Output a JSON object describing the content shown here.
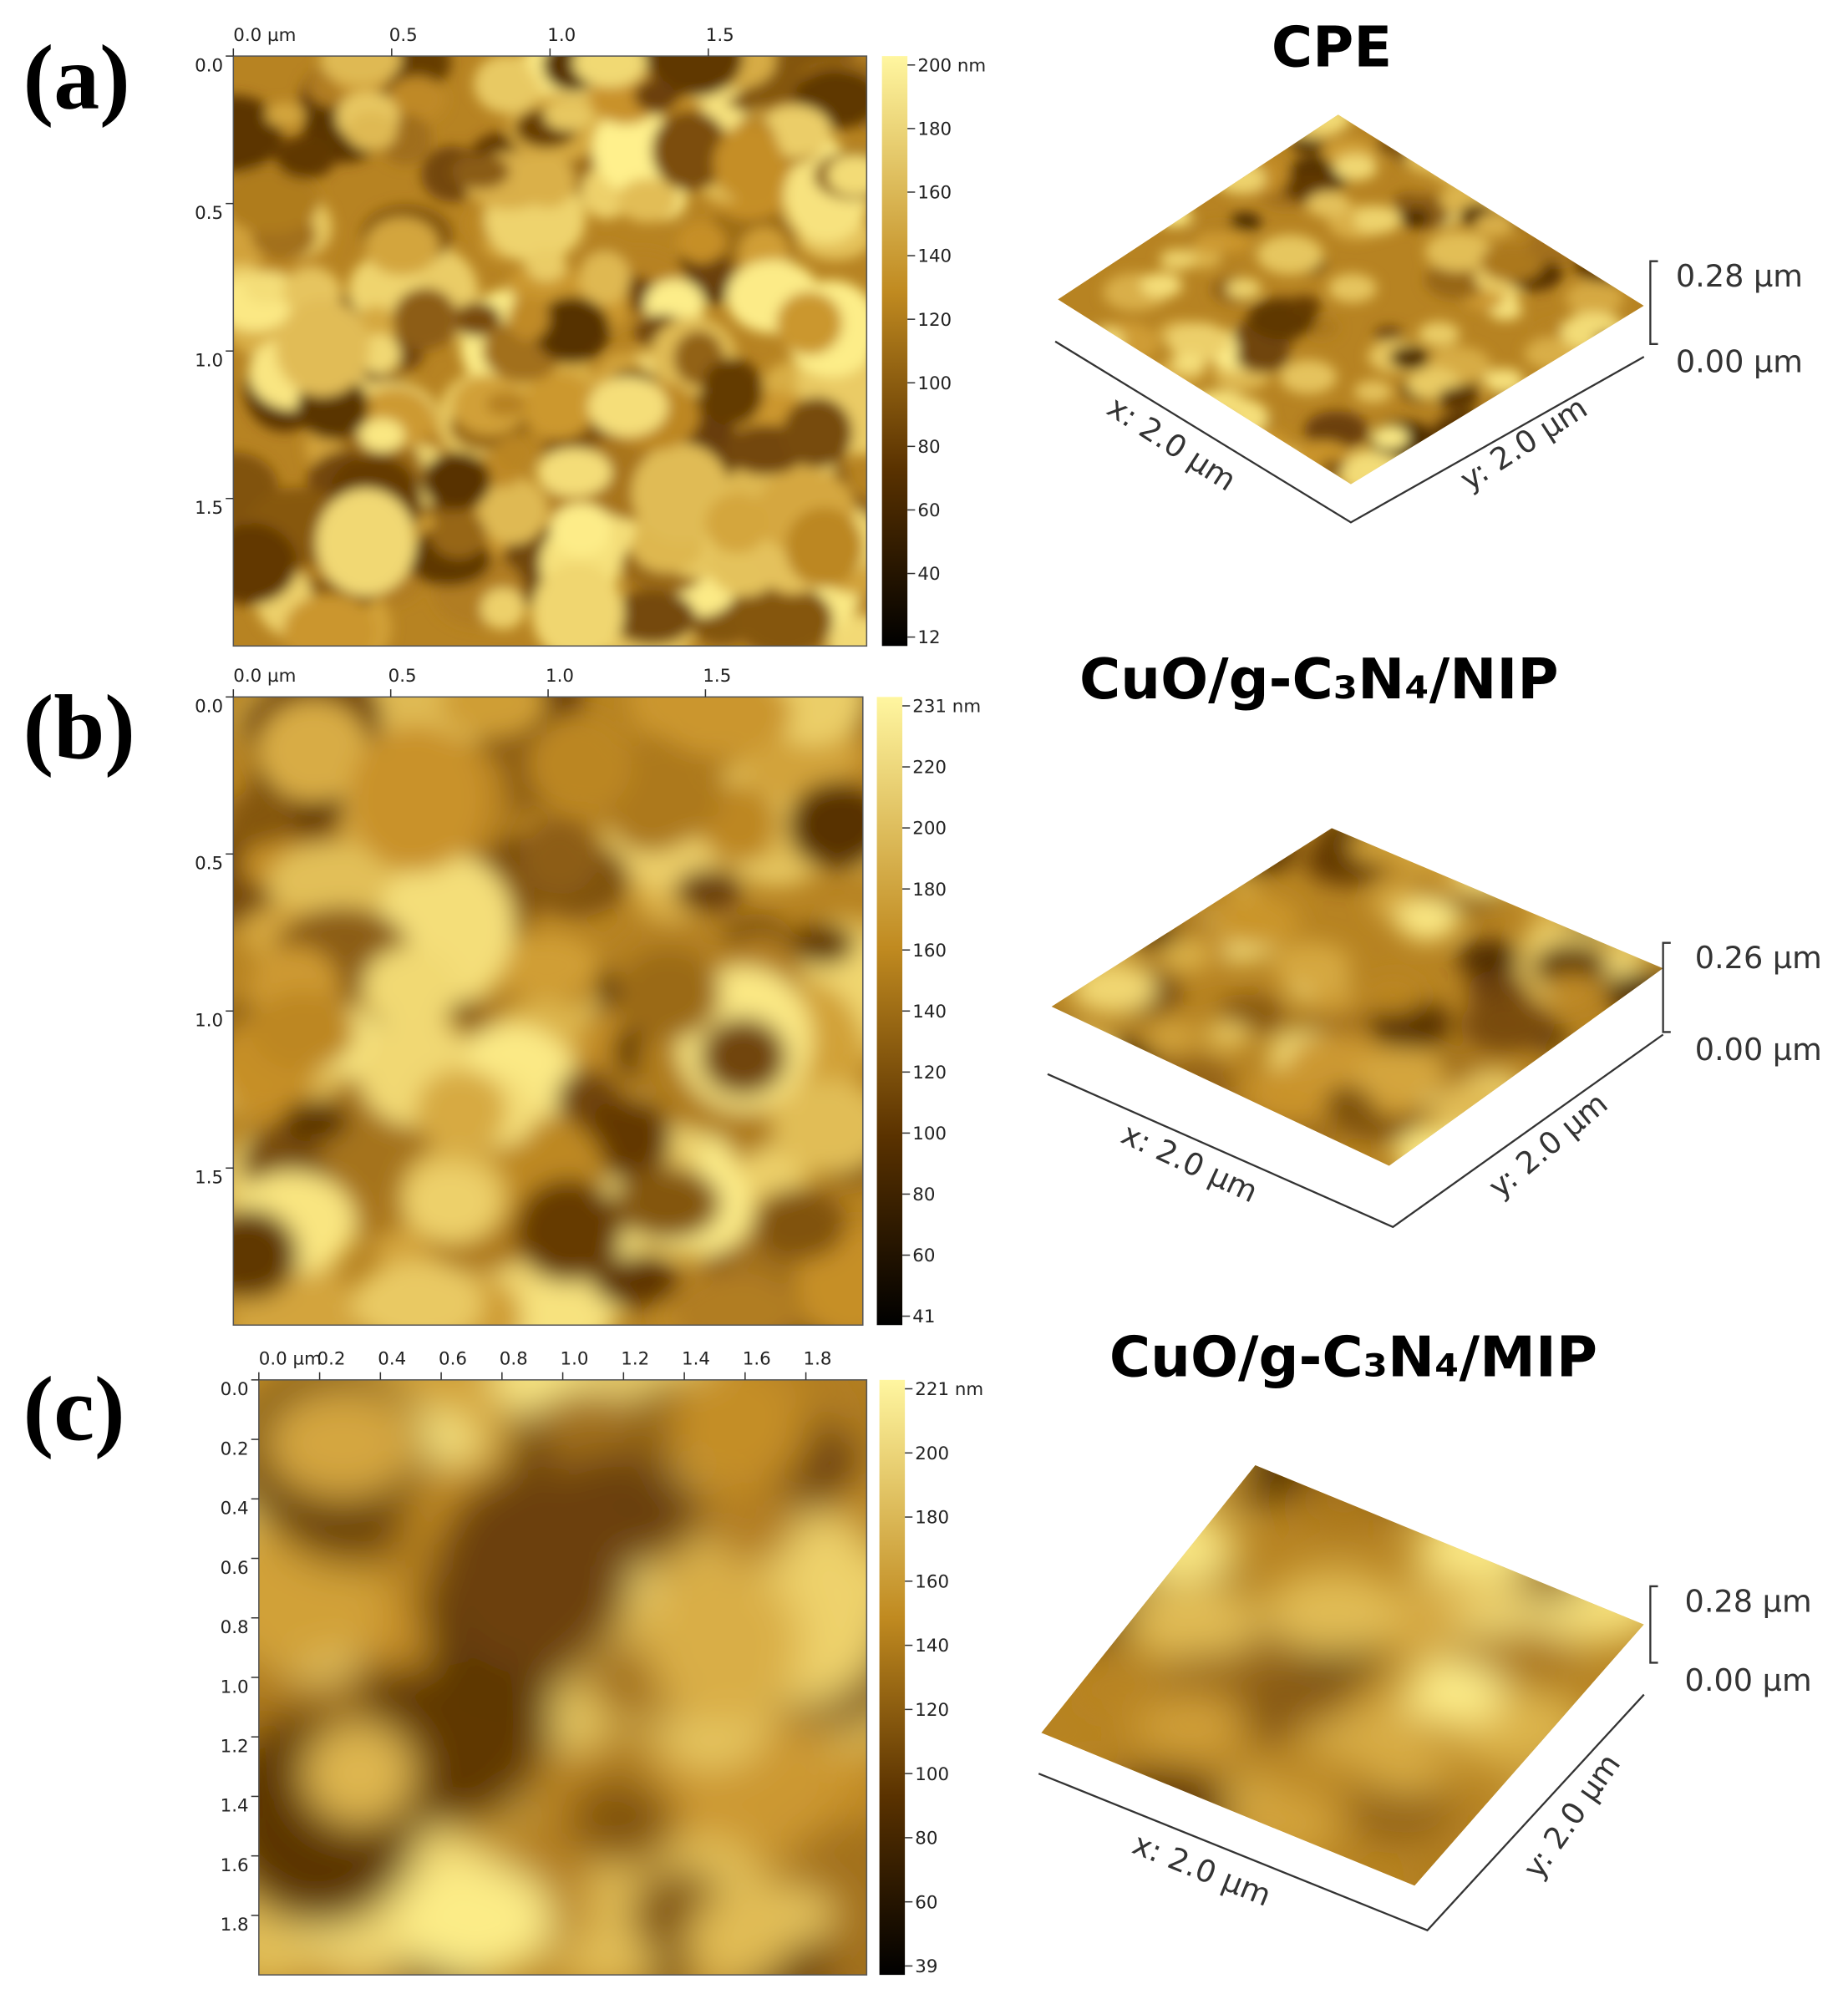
{
  "panels": [
    {
      "label": "(a)",
      "title": "CPE",
      "x_ticks": [
        "0.0 µm",
        "0.5",
        "1.0",
        "1.5"
      ],
      "y_ticks": [
        "0.0",
        "0.5",
        "1.0",
        "1.5"
      ],
      "colorbar_ticks": [
        "200 nm",
        "180",
        "160",
        "140",
        "120",
        "100",
        "80",
        "60",
        "40",
        "12"
      ],
      "z_labels": [
        "0.28 µm",
        "0.00 µm"
      ],
      "axis_labels": [
        "x: 2.0 µm",
        "y: 2.0 µm"
      ]
    },
    {
      "label": "(b)",
      "title": "CuO/g-C₃N₄/NIP",
      "x_ticks": [
        "0.0 µm",
        "0.5",
        "1.0",
        "1.5"
      ],
      "y_ticks": [
        "0.0",
        "0.5",
        "1.0",
        "1.5"
      ],
      "colorbar_ticks": [
        "231 nm",
        "220",
        "200",
        "180",
        "160",
        "140",
        "120",
        "100",
        "80",
        "60",
        "41"
      ],
      "z_labels": [
        "0.26 µm",
        "0.00 µm"
      ],
      "axis_labels": [
        "x: 2.0 µm",
        "y: 2.0 µm"
      ]
    },
    {
      "label": "(c)",
      "title": "CuO/g-C₃N₄/MIP",
      "x_ticks": [
        "0.0 µm",
        "0.2",
        "0.4",
        "0.6",
        "0.8",
        "1.0",
        "1.2",
        "1.4",
        "1.6",
        "1.8"
      ],
      "y_ticks": [
        "0.0",
        "0.2",
        "0.4",
        "0.6",
        "0.8",
        "1.0",
        "1.2",
        "1.4",
        "1.6",
        "1.8"
      ],
      "colorbar_ticks": [
        "221 nm",
        "200",
        "180",
        "160",
        "140",
        "120",
        "100",
        "80",
        "60",
        "39"
      ],
      "z_labels": [
        "0.28 µm",
        "0.00 µm"
      ],
      "axis_labels": [
        "x: 2.0 µm",
        "y: 2.0 µm"
      ]
    }
  ]
}
